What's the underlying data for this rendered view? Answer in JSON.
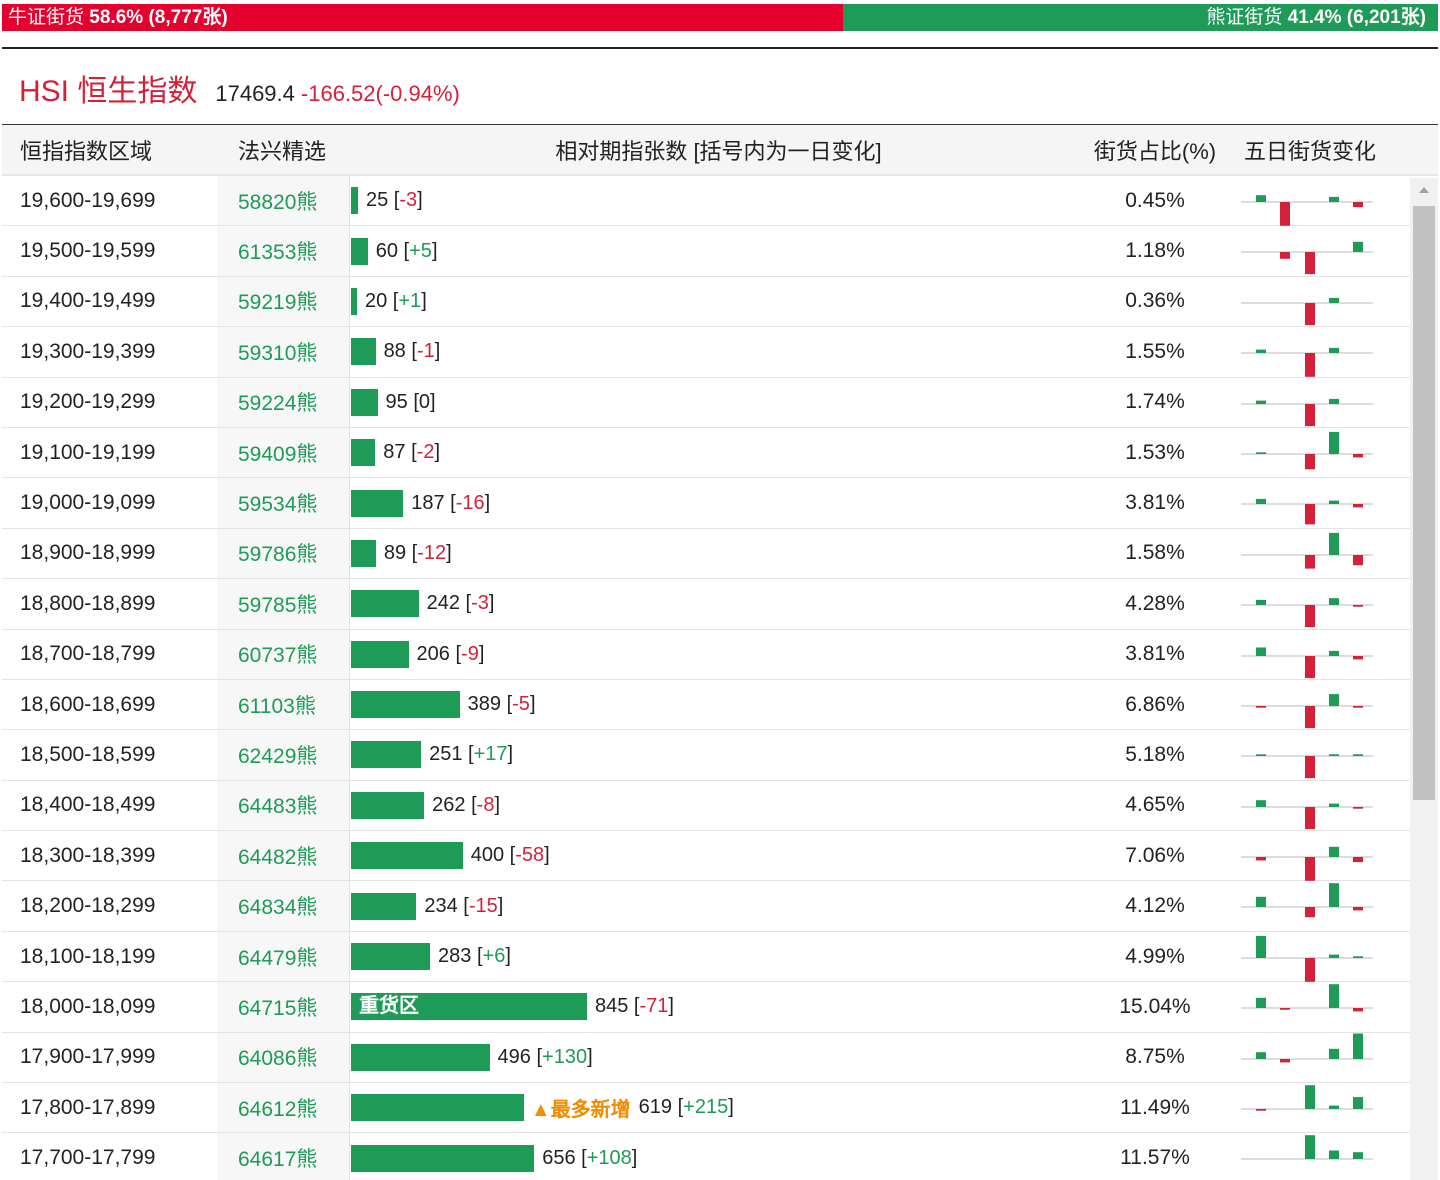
{
  "ratio": {
    "bull_label": "牛证街货",
    "bull_stat": "58.6% (8,777张)",
    "bull_fraction": 0.586,
    "bear_label": "熊证街货",
    "bear_stat": "41.4% (6,201张)"
  },
  "index": {
    "name": "HSI 恒生指数",
    "value": "17469.4",
    "change": "-166.52(-0.94%)"
  },
  "table": {
    "headers": {
      "range": "恒指指数区域",
      "warrant": "法兴精选",
      "count": "相对期指张数 [括号内为一日变化]",
      "share": "街货占比(%)",
      "trend": "五日街货变化"
    },
    "count_max": 845,
    "rows": [
      {
        "range": "19,600-19,699",
        "warrant": "58820熊",
        "count": 25,
        "change": "-3",
        "share": "0.45%",
        "trend": [
          4,
          -14,
          0,
          3,
          -3
        ]
      },
      {
        "range": "19,500-19,599",
        "warrant": "61353熊",
        "count": 60,
        "change": "+5",
        "share": "1.18%",
        "trend": [
          0,
          -4,
          -13,
          0,
          6
        ]
      },
      {
        "range": "19,400-19,499",
        "warrant": "59219熊",
        "count": 20,
        "change": "+1",
        "share": "0.36%",
        "trend": [
          0,
          0,
          -13,
          3,
          0
        ]
      },
      {
        "range": "19,300-19,399",
        "warrant": "59310熊",
        "count": 88,
        "change": "-1",
        "share": "1.55%",
        "trend": [
          2,
          0,
          -14,
          3,
          0
        ]
      },
      {
        "range": "19,200-19,299",
        "warrant": "59224熊",
        "count": 95,
        "change": "0",
        "share": "1.74%",
        "trend": [
          2,
          0,
          -13,
          3,
          0
        ]
      },
      {
        "range": "19,100-19,199",
        "warrant": "59409熊",
        "count": 87,
        "change": "-2",
        "share": "1.53%",
        "trend": [
          1,
          0,
          -9,
          13,
          -2
        ]
      },
      {
        "range": "19,000-19,099",
        "warrant": "59534熊",
        "count": 187,
        "change": "-16",
        "share": "3.81%",
        "trend": [
          3,
          0,
          -12,
          2,
          -2
        ]
      },
      {
        "range": "18,900-18,999",
        "warrant": "59786熊",
        "count": 89,
        "change": "-12",
        "share": "1.58%",
        "trend": [
          0,
          0,
          -8,
          13,
          -6
        ]
      },
      {
        "range": "18,800-18,899",
        "warrant": "59785熊",
        "count": 242,
        "change": "-3",
        "share": "4.28%",
        "trend": [
          3,
          0,
          -13,
          4,
          -1
        ]
      },
      {
        "range": "18,700-18,799",
        "warrant": "60737熊",
        "count": 206,
        "change": "-9",
        "share": "3.81%",
        "trend": [
          5,
          0,
          -13,
          3,
          -2
        ]
      },
      {
        "range": "18,600-18,699",
        "warrant": "61103熊",
        "count": 389,
        "change": "-5",
        "share": "6.86%",
        "trend": [
          -1,
          0,
          -13,
          7,
          -1
        ]
      },
      {
        "range": "18,500-18,599",
        "warrant": "62429熊",
        "count": 251,
        "change": "+17",
        "share": "5.18%",
        "trend": [
          1,
          0,
          -13,
          1,
          1
        ]
      },
      {
        "range": "18,400-18,499",
        "warrant": "64483熊",
        "count": 262,
        "change": "-8",
        "share": "4.65%",
        "trend": [
          4,
          0,
          -13,
          2,
          -1
        ]
      },
      {
        "range": "18,300-18,399",
        "warrant": "64482熊",
        "count": 400,
        "change": "-58",
        "share": "7.06%",
        "trend": [
          -2,
          0,
          -14,
          6,
          -3
        ]
      },
      {
        "range": "18,200-18,299",
        "warrant": "64834熊",
        "count": 234,
        "change": "-15",
        "share": "4.12%",
        "trend": [
          6,
          0,
          -6,
          14,
          -2
        ]
      },
      {
        "range": "18,100-18,199",
        "warrant": "64479熊",
        "count": 283,
        "change": "+6",
        "share": "4.99%",
        "trend": [
          13,
          0,
          -14,
          2,
          1
        ]
      },
      {
        "range": "18,000-18,099",
        "warrant": "64715熊",
        "count": 845,
        "change": "-71",
        "share": "15.04%",
        "label": "重货区",
        "trend": [
          6,
          -1,
          0,
          14,
          -2
        ]
      },
      {
        "range": "17,900-17,999",
        "warrant": "64086熊",
        "count": 496,
        "change": "+130",
        "share": "8.75%",
        "trend": [
          4,
          -2,
          0,
          6,
          15
        ]
      },
      {
        "range": "17,800-17,899",
        "warrant": "64612熊",
        "count": 619,
        "change": "+215",
        "share": "11.49%",
        "badge": "▲最多新增",
        "trend": [
          -1,
          0,
          14,
          2,
          7
        ]
      },
      {
        "range": "17,700-17,799",
        "warrant": "64617熊",
        "count": 656,
        "change": "+108",
        "share": "11.57%",
        "trend": [
          0,
          0,
          14,
          5,
          4
        ]
      }
    ]
  },
  "colors": {
    "bull": "#e5002d",
    "bear": "#1d9b57",
    "up": "#1d9b57",
    "down": "#d5203a",
    "badge": "#f08c00"
  }
}
